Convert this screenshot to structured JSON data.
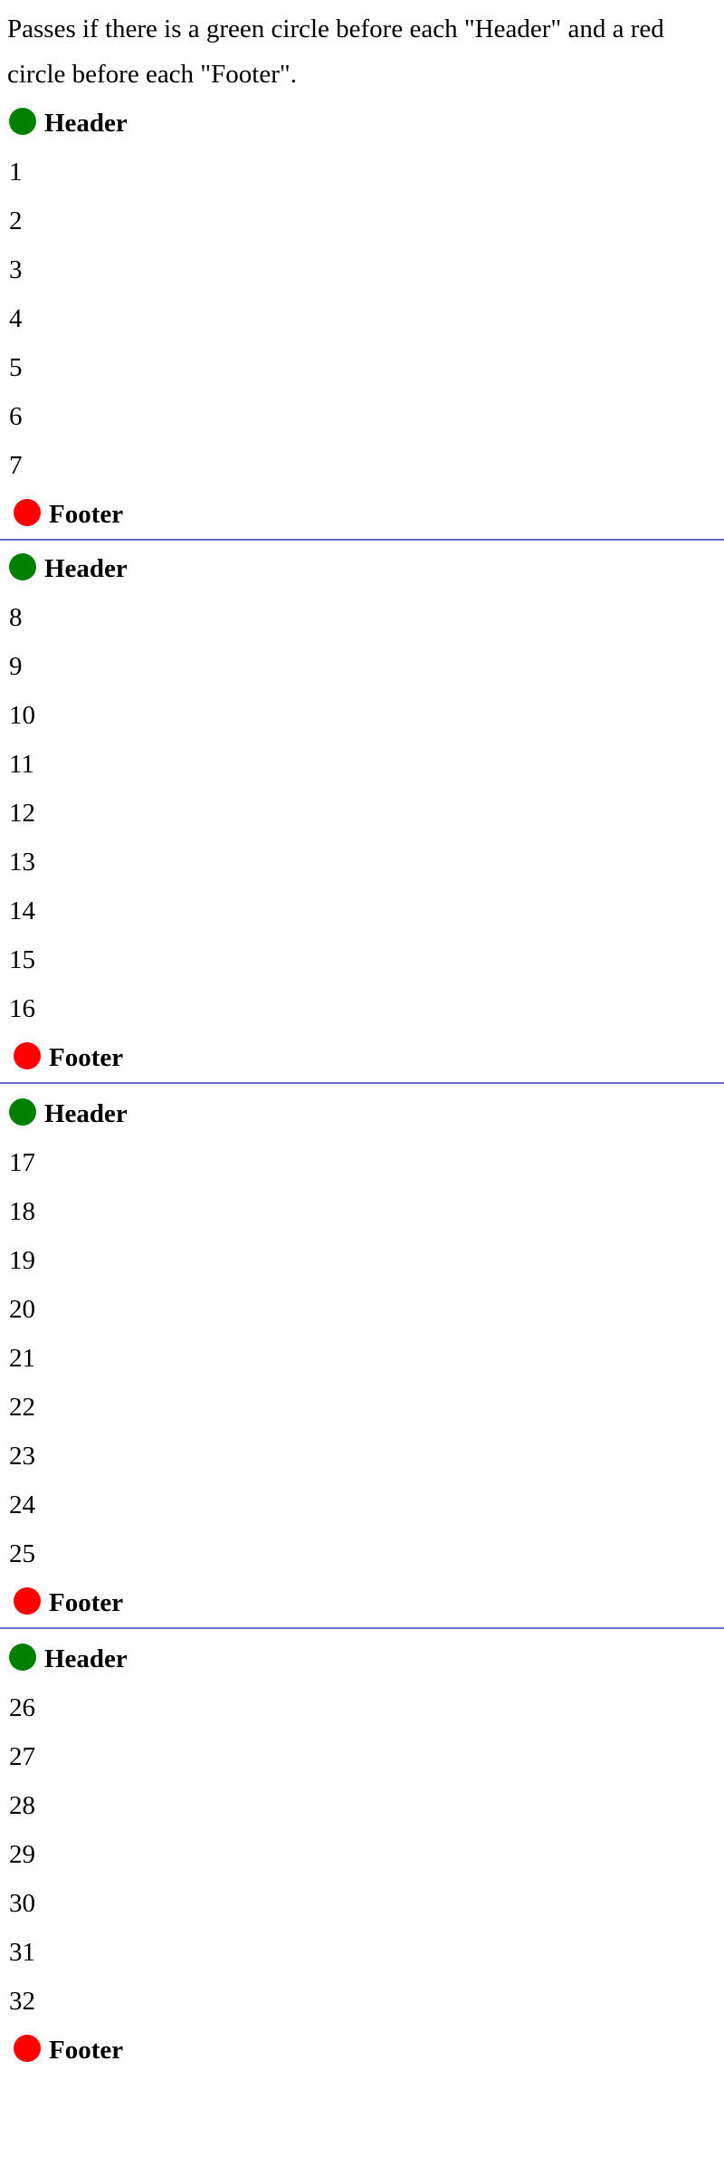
{
  "intro_text": "Passes if there is a green circle before each \"Header\" and a red circle before each \"Footer\".",
  "colors": {
    "header_circle": "#008000",
    "footer_circle": "#ff0000",
    "divider": "#6a6ad6"
  },
  "header_label": "Header",
  "footer_label": "Footer",
  "pages": [
    {
      "header": "Header",
      "footer": "Footer",
      "rows": [
        "1",
        "2",
        "3",
        "4",
        "5",
        "6",
        "7"
      ]
    },
    {
      "header": "Header",
      "footer": "Footer",
      "rows": [
        "8",
        "9",
        "10",
        "11",
        "12",
        "13",
        "14",
        "15",
        "16"
      ]
    },
    {
      "header": "Header",
      "footer": "Footer",
      "rows": [
        "17",
        "18",
        "19",
        "20",
        "21",
        "22",
        "23",
        "24",
        "25"
      ]
    },
    {
      "header": "Header",
      "footer": "Footer",
      "rows": [
        "26",
        "27",
        "28",
        "29",
        "30",
        "31",
        "32"
      ]
    }
  ]
}
